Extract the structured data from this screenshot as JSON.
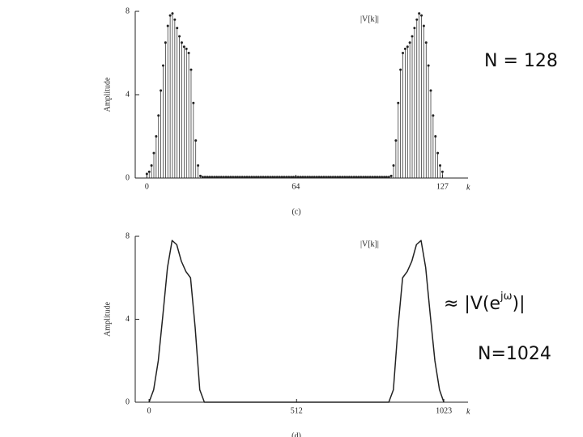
{
  "charts": [
    {
      "chart_data": {
        "type": "stem",
        "panel_label": "(c)",
        "legend_text": "|V[k]|",
        "ylabel": "Amplitude",
        "xlabel": "k",
        "x": [
          0,
          1,
          2,
          3,
          4,
          5,
          6,
          7,
          8,
          9,
          10,
          11,
          12,
          13,
          14,
          15,
          16,
          17,
          18,
          19,
          20,
          21,
          22,
          23,
          24,
          25,
          26,
          27,
          28,
          29,
          30,
          31,
          32,
          33,
          34,
          35,
          36,
          37,
          38,
          39,
          40,
          41,
          42,
          43,
          44,
          45,
          46,
          47,
          48,
          49,
          50,
          51,
          52,
          53,
          54,
          55,
          56,
          57,
          58,
          59,
          60,
          61,
          62,
          63,
          64,
          65,
          66,
          67,
          68,
          69,
          70,
          71,
          72,
          73,
          74,
          75,
          76,
          77,
          78,
          79,
          80,
          81,
          82,
          83,
          84,
          85,
          86,
          87,
          88,
          89,
          90,
          91,
          92,
          93,
          94,
          95,
          96,
          97,
          98,
          99,
          100,
          101,
          102,
          103,
          104,
          105,
          106,
          107,
          108,
          109,
          110,
          111,
          112,
          113,
          114,
          115,
          116,
          117,
          118,
          119,
          120,
          121,
          122,
          123,
          124,
          125,
          126,
          127
        ],
        "values": [
          0.2,
          0.3,
          0.6,
          1.2,
          2.0,
          3.0,
          4.2,
          5.4,
          6.5,
          7.3,
          7.8,
          7.9,
          7.6,
          7.2,
          6.8,
          6.5,
          6.3,
          6.2,
          6.0,
          5.2,
          3.6,
          1.8,
          0.6,
          0.1,
          0.05,
          0.05,
          0.05,
          0.05,
          0.05,
          0.05,
          0.05,
          0.05,
          0.05,
          0.05,
          0.05,
          0.05,
          0.05,
          0.05,
          0.05,
          0.05,
          0.05,
          0.05,
          0.05,
          0.05,
          0.05,
          0.05,
          0.05,
          0.05,
          0.05,
          0.05,
          0.05,
          0.05,
          0.05,
          0.05,
          0.05,
          0.05,
          0.05,
          0.05,
          0.05,
          0.05,
          0.05,
          0.05,
          0.05,
          0.05,
          0.05,
          0.05,
          0.05,
          0.05,
          0.05,
          0.05,
          0.05,
          0.05,
          0.05,
          0.05,
          0.05,
          0.05,
          0.05,
          0.05,
          0.05,
          0.05,
          0.05,
          0.05,
          0.05,
          0.05,
          0.05,
          0.05,
          0.05,
          0.05,
          0.05,
          0.05,
          0.05,
          0.05,
          0.05,
          0.05,
          0.05,
          0.05,
          0.05,
          0.05,
          0.05,
          0.05,
          0.05,
          0.05,
          0.05,
          0.05,
          0.05,
          0.1,
          0.6,
          1.8,
          3.6,
          5.2,
          6.0,
          6.2,
          6.3,
          6.5,
          6.8,
          7.2,
          7.6,
          7.9,
          7.8,
          7.3,
          6.5,
          5.4,
          4.2,
          3.0,
          2.0,
          1.2,
          0.6,
          0.3
        ],
        "color": "#222222",
        "xlim": [
          -5,
          138
        ],
        "xticks": [
          0,
          64,
          127
        ],
        "ylim": [
          0,
          8
        ],
        "yticks": [
          0,
          4,
          8
        ]
      }
    },
    {
      "chart_data": {
        "type": "line",
        "panel_label": "(d)",
        "legend_text": "|V[k]|",
        "ylabel": "Amplitude",
        "xlabel": "k",
        "x": [
          0,
          16,
          32,
          48,
          64,
          80,
          96,
          112,
          128,
          144,
          160,
          176,
          192,
          256,
          320,
          384,
          448,
          512,
          576,
          640,
          704,
          768,
          832,
          848,
          864,
          880,
          896,
          912,
          928,
          944,
          960,
          976,
          992,
          1008,
          1023
        ],
        "values": [
          0,
          0.6,
          2.0,
          4.2,
          6.5,
          7.8,
          7.6,
          6.8,
          6.3,
          6.0,
          3.6,
          0.6,
          0,
          0,
          0,
          0,
          0,
          0,
          0,
          0,
          0,
          0,
          0,
          0.6,
          3.6,
          6.0,
          6.3,
          6.8,
          7.6,
          7.8,
          6.5,
          4.2,
          2.0,
          0.6,
          0
        ],
        "color": "#222222",
        "xlim": [
          -48,
          1107
        ],
        "xticks": [
          0,
          512,
          1023
        ],
        "ylim": [
          0,
          8
        ],
        "yticks": [
          0,
          4,
          8
        ]
      }
    }
  ],
  "annotations": {
    "n128": "N = 128",
    "approx_prefix": "≈ |V(e",
    "approx_sup": "jω",
    "approx_suffix": ")|",
    "n1024": "N=1024"
  }
}
